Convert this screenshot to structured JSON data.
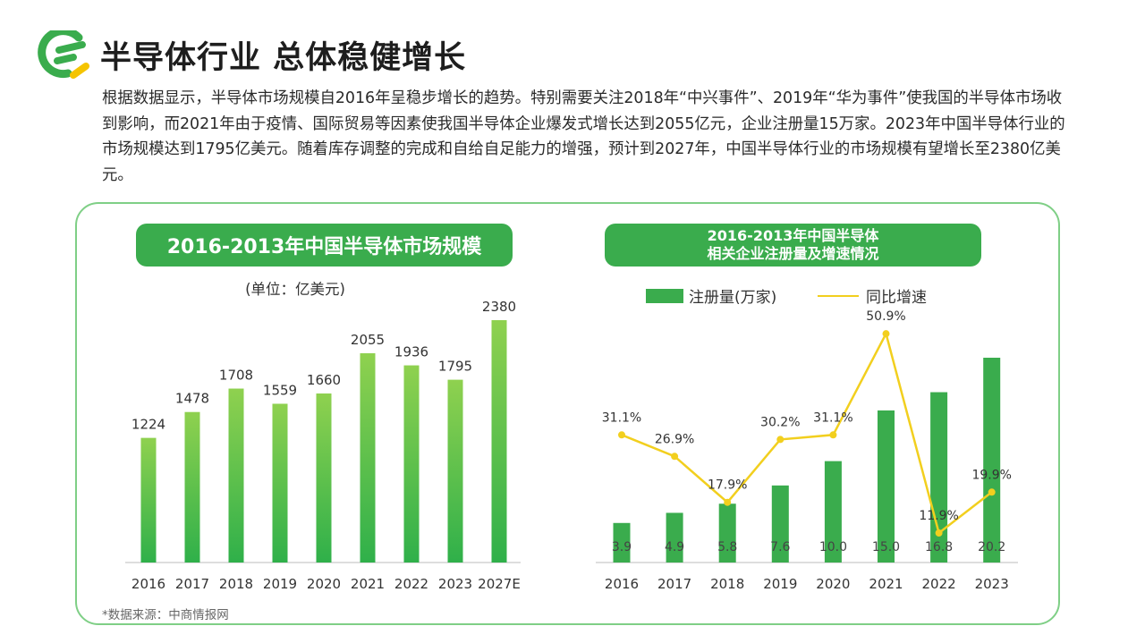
{
  "header": {
    "title": "半导体行业 总体稳健增长",
    "description": "根据数据显示，半导体市场规模自2016年呈稳步增长的趋势。特别需要关注2018年“中兴事件”、2019年“华为事件”使我国的半导体市场收到影响，而2021年由于疫情、国际贸易等因素使我国半导体企业爆发式增长达到2055亿元，企业注册量15万家。2023年中国半导体行业的市场规模达到1795亿美元。随着库存调整的完成和自给自足能力的增强，预计到2027年，中国半导体行业的市场规模有望增长至2380亿美元。"
  },
  "colors": {
    "accent_green": "#3aac4d",
    "bar_top": "#8fd14f",
    "bar_bottom": "#2fb04a",
    "line_yellow": "#f2cf1e",
    "logo_yellow": "#f5c400"
  },
  "source": "*数据来源：中商情报网",
  "chart_data": [
    {
      "type": "bar",
      "title": "2016-2013年中国半导体市场规模",
      "unit_label": "(单位：亿美元)",
      "categories": [
        "2016",
        "2017",
        "2018",
        "2019",
        "2020",
        "2021",
        "2022",
        "2023",
        "2027E"
      ],
      "values": [
        1224,
        1478,
        1708,
        1559,
        1660,
        2055,
        1936,
        1795,
        2380
      ],
      "ylim": [
        0,
        2500
      ]
    },
    {
      "type": "bar+line",
      "title_line1": "2016-2013年中国半导体",
      "title_line2": "相关企业注册量及增速情况",
      "categories": [
        "2016",
        "2017",
        "2018",
        "2019",
        "2020",
        "2021",
        "2022",
        "2023"
      ],
      "series": [
        {
          "name": "注册量(万家)",
          "type": "bar",
          "values": [
            3.9,
            4.9,
            5.8,
            7.6,
            10.0,
            15.0,
            16.8,
            20.2
          ],
          "labels": [
            "3.9",
            "4.9",
            "5.8",
            "7.6",
            "10.0",
            "15.0",
            "16.8",
            "20.2"
          ],
          "ylim": [
            0,
            22
          ]
        },
        {
          "name": "同比增速",
          "type": "line",
          "values": [
            31.1,
            26.9,
            17.9,
            30.2,
            31.1,
            50.9,
            11.9,
            19.9
          ],
          "labels": [
            "31.1%",
            "26.9%",
            "17.9%",
            "30.2%",
            "31.1%",
            "50.9%",
            "11.9%",
            "19.9%"
          ],
          "ylim": [
            0,
            70
          ]
        }
      ]
    }
  ]
}
